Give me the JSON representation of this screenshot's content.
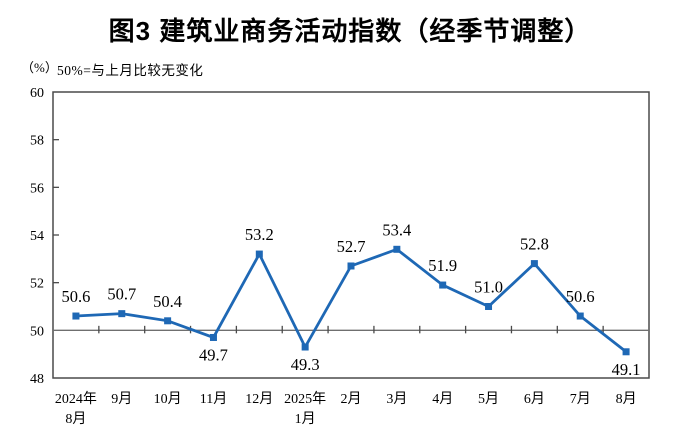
{
  "title": "图3 建筑业商务活动指数（经季节调整）",
  "axis_unit": "（%）",
  "reference_note": "50%=与上月比较无变化",
  "colors": {
    "series": "#1E68B5",
    "reference_line": "#6F6F6F",
    "axis": "#4A4A4A",
    "text": "#000000"
  },
  "chart_data": {
    "type": "line",
    "title": "图3 建筑业商务活动指数（经季节调整）",
    "ylabel": "%",
    "ylim": [
      48,
      60
    ],
    "ytick_step": 2,
    "yticks": [
      48,
      50,
      52,
      54,
      56,
      58,
      60
    ],
    "reference_value": 50,
    "reference_label": "50%=与上月比较无变化",
    "grid": "off",
    "legend_position": "none",
    "categories": [
      "2024年8月",
      "9月",
      "10月",
      "11月",
      "12月",
      "2025年1月",
      "2月",
      "3月",
      "4月",
      "5月",
      "6月",
      "7月",
      "8月"
    ],
    "category_lines": [
      [
        "2024年",
        "8月"
      ],
      [
        "9月"
      ],
      [
        "10月"
      ],
      [
        "11月"
      ],
      [
        "12月"
      ],
      [
        "2025年",
        "1月"
      ],
      [
        "2月"
      ],
      [
        "3月"
      ],
      [
        "4月"
      ],
      [
        "5月"
      ],
      [
        "6月"
      ],
      [
        "7月"
      ],
      [
        "8月"
      ]
    ],
    "series": [
      {
        "name": "建筑业商务活动指数",
        "values": [
          50.6,
          50.7,
          50.4,
          49.7,
          53.2,
          49.3,
          52.7,
          53.4,
          51.9,
          51.0,
          52.8,
          50.6,
          49.1
        ]
      }
    ],
    "data_label_positions": [
      "above",
      "above",
      "above",
      "below",
      "above",
      "below",
      "above",
      "above",
      "above",
      "above",
      "above",
      "above",
      "below"
    ]
  }
}
